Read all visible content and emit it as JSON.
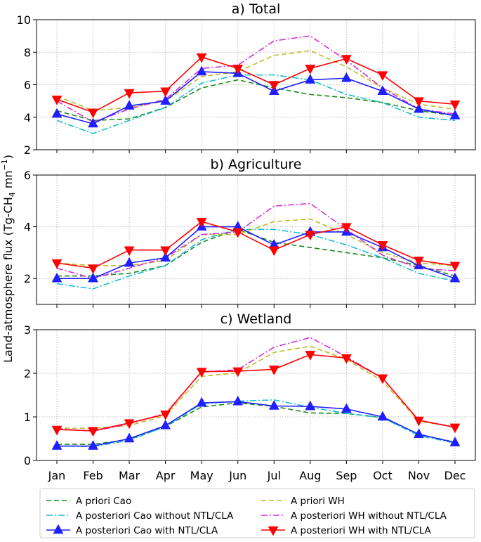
{
  "ylabel_main": "Land-atmosphere flux (Tg-CH",
  "ylabel_sub": "4",
  "ylabel_tail": " mn",
  "ylabel_sup": "−1",
  "ylabel_end": ")",
  "months": [
    "Jan",
    "Feb",
    "Mar",
    "Apr",
    "May",
    "Jun",
    "Jul",
    "Aug",
    "Sep",
    "Oct",
    "Nov",
    "Dec"
  ],
  "legend": [
    {
      "key": "prior_cao",
      "label": "A priori Cao"
    },
    {
      "key": "prior_wh",
      "label": "A priori WH"
    },
    {
      "key": "post_cao_wo",
      "label": "A posteriori Cao without NTL/CLA"
    },
    {
      "key": "post_wh_wo",
      "label": "A posteriori WH without NTL/CLA"
    },
    {
      "key": "post_cao_w",
      "label": "A posteriori Cao with NTL/CLA"
    },
    {
      "key": "post_wh_w",
      "label": "A posteriori WH with NTL/CLA"
    }
  ],
  "styles": {
    "prior_cao": {
      "color": "#1a8a1a",
      "dash": "7,4",
      "marker": "none"
    },
    "post_cao_wo": {
      "color": "#17becf",
      "dash": "9,3,2,3",
      "marker": "none"
    },
    "post_cao_w": {
      "color": "#1f1fff",
      "dash": "",
      "marker": "tri-up"
    },
    "prior_wh": {
      "color": "#bcbd22",
      "dash": "7,4",
      "marker": "none"
    },
    "post_wh_wo": {
      "color": "#d62fd6",
      "dash": "9,3,2,3",
      "marker": "none"
    },
    "post_wh_w": {
      "color": "#ff0000",
      "dash": "",
      "marker": "tri-down"
    }
  },
  "chart_data": [
    {
      "type": "line",
      "title": "a) Total",
      "ylim": [
        2,
        10
      ],
      "yticks": [
        2,
        4,
        6,
        8,
        10
      ],
      "categories": [
        "Jan",
        "Feb",
        "Mar",
        "Apr",
        "May",
        "Jun",
        "Jul",
        "Aug",
        "Sep",
        "Oct",
        "Nov",
        "Dec"
      ],
      "series": [
        {
          "key": "prior_cao",
          "name": "A priori Cao",
          "values": [
            4.4,
            3.8,
            3.9,
            4.6,
            5.8,
            6.3,
            5.8,
            5.4,
            5.2,
            4.9,
            4.4,
            4.1
          ]
        },
        {
          "key": "post_cao_wo",
          "name": "A posteriori Cao without NTL/CLA",
          "values": [
            3.8,
            3.0,
            3.8,
            4.6,
            6.1,
            6.6,
            6.6,
            6.3,
            5.4,
            4.9,
            4.0,
            3.8
          ]
        },
        {
          "key": "prior_wh",
          "name": "A priori WH",
          "values": [
            5.3,
            4.4,
            4.6,
            5.0,
            6.5,
            6.8,
            7.8,
            8.1,
            7.1,
            5.8,
            4.8,
            4.5
          ]
        },
        {
          "key": "post_wh_wo",
          "name": "A posteriori WH without NTL/CLA",
          "values": [
            5.0,
            3.7,
            4.5,
            5.1,
            7.0,
            7.2,
            8.7,
            9.0,
            7.5,
            5.8,
            4.5,
            4.2
          ]
        },
        {
          "key": "post_cao_w",
          "name": "A posteriori Cao with NTL/CLA",
          "values": [
            4.2,
            3.6,
            4.7,
            5.0,
            6.8,
            6.7,
            5.6,
            6.3,
            6.4,
            5.6,
            4.5,
            4.1
          ]
        },
        {
          "key": "post_wh_w",
          "name": "A posteriori WH with NTL/CLA",
          "values": [
            5.1,
            4.3,
            5.5,
            5.6,
            7.7,
            7.0,
            6.0,
            7.0,
            7.6,
            6.6,
            5.0,
            4.8
          ]
        }
      ]
    },
    {
      "type": "line",
      "title": "b) Agriculture",
      "ylim": [
        1,
        6
      ],
      "yticks": [
        2,
        4,
        6
      ],
      "categories": [
        "Jan",
        "Feb",
        "Mar",
        "Apr",
        "May",
        "Jun",
        "Jul",
        "Aug",
        "Sep",
        "Oct",
        "Nov",
        "Dec"
      ],
      "series": [
        {
          "key": "prior_cao",
          "name": "A priori Cao",
          "values": [
            2.1,
            2.1,
            2.2,
            2.5,
            3.4,
            3.9,
            3.4,
            3.2,
            3.0,
            2.8,
            2.5,
            2.1
          ]
        },
        {
          "key": "post_cao_wo",
          "name": "A posteriori Cao without NTL/CLA",
          "values": [
            1.8,
            1.6,
            2.1,
            2.5,
            3.5,
            3.9,
            3.9,
            3.7,
            3.3,
            2.8,
            2.2,
            1.9
          ]
        },
        {
          "key": "prior_wh",
          "name": "A priori WH",
          "values": [
            2.6,
            2.5,
            2.5,
            2.7,
            3.7,
            3.7,
            4.2,
            4.3,
            3.7,
            3.0,
            2.6,
            2.5
          ]
        },
        {
          "key": "post_wh_wo",
          "name": "A posteriori WH without NTL/CLA",
          "values": [
            2.4,
            2.0,
            2.4,
            2.8,
            3.7,
            3.8,
            4.8,
            4.9,
            3.9,
            2.9,
            2.4,
            2.3
          ]
        },
        {
          "key": "post_cao_w",
          "name": "A posteriori Cao with NTL/CLA",
          "values": [
            2.0,
            2.0,
            2.6,
            2.8,
            4.0,
            4.0,
            3.3,
            3.8,
            3.8,
            3.2,
            2.5,
            2.0
          ]
        },
        {
          "key": "post_wh_w",
          "name": "A posteriori WH with NTL/CLA",
          "values": [
            2.6,
            2.4,
            3.1,
            3.1,
            4.2,
            3.8,
            3.1,
            3.7,
            4.0,
            3.3,
            2.7,
            2.5
          ]
        }
      ]
    },
    {
      "type": "line",
      "title": "c) Wetland",
      "ylim": [
        0,
        3
      ],
      "yticks": [
        0,
        1,
        2,
        3
      ],
      "categories": [
        "Jan",
        "Feb",
        "Mar",
        "Apr",
        "May",
        "Jun",
        "Jul",
        "Aug",
        "Sep",
        "Oct",
        "Nov",
        "Dec"
      ],
      "series": [
        {
          "key": "prior_cao",
          "name": "A priori Cao",
          "values": [
            0.37,
            0.37,
            0.48,
            0.78,
            1.23,
            1.32,
            1.24,
            1.09,
            1.08,
            0.98,
            0.6,
            0.42
          ]
        },
        {
          "key": "post_cao_wo",
          "name": "A posteriori Cao without NTL/CLA",
          "values": [
            0.33,
            0.32,
            0.46,
            0.78,
            1.3,
            1.36,
            1.39,
            1.22,
            1.08,
            0.98,
            0.57,
            0.4
          ]
        },
        {
          "key": "prior_wh",
          "name": "A priori WH",
          "values": [
            0.74,
            0.74,
            0.8,
            1.03,
            1.93,
            2.01,
            2.48,
            2.62,
            2.32,
            1.82,
            0.9,
            0.77
          ]
        },
        {
          "key": "post_wh_wo",
          "name": "A posteriori WH without NTL/CLA",
          "values": [
            0.73,
            0.67,
            0.84,
            1.08,
            2.03,
            2.08,
            2.6,
            2.82,
            2.38,
            1.89,
            0.92,
            0.77
          ]
        },
        {
          "key": "post_cao_w",
          "name": "A posteriori Cao with NTL/CLA",
          "values": [
            0.33,
            0.33,
            0.5,
            0.8,
            1.32,
            1.35,
            1.25,
            1.24,
            1.18,
            1.0,
            0.6,
            0.41
          ]
        },
        {
          "key": "post_wh_w",
          "name": "A posteriori WH with NTL/CLA",
          "values": [
            0.71,
            0.68,
            0.86,
            1.06,
            2.04,
            2.05,
            2.09,
            2.43,
            2.35,
            1.89,
            0.92,
            0.76
          ]
        }
      ]
    }
  ]
}
